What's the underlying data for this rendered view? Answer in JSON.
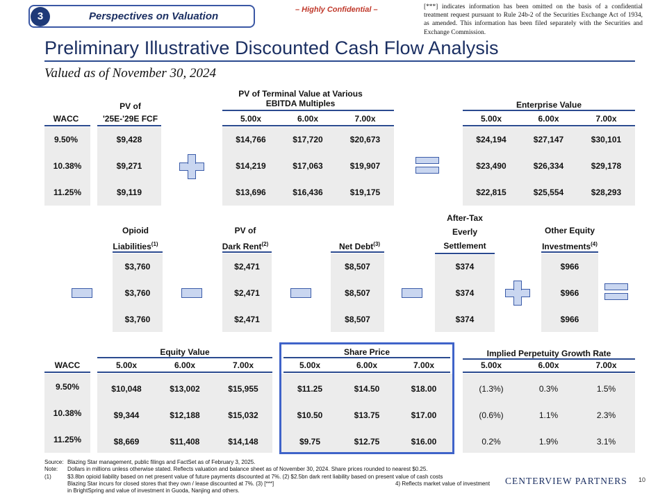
{
  "header": {
    "section_number": "3",
    "section_title": "Perspectives on Valuation",
    "confidential": "– Highly Confidential –",
    "disclaimer": "[***] indicates information has been omitted on the basis of a confidential treatment request pursuant to Rule 24b-2 of the Securities Exchange Act of 1934, as amended. This information has been filed separately with the Securities and Exchange Commission.",
    "title": "Preliminary Illustrative Discounted Cash Flow Analysis",
    "subtitle": "Valued as of November 30, 2024"
  },
  "top": {
    "wacc_header": "WACC",
    "pv_fcf_header_1": "PV of",
    "pv_fcf_header_2": "'25E-'29E FCF",
    "tv_header_1": "PV of Terminal Value at Various",
    "tv_header_2": "EBITDA Multiples",
    "ev_header": "Enterprise Value",
    "multiples": [
      "5.00x",
      "6.00x",
      "7.00x"
    ],
    "rows": [
      {
        "wacc": "9.50%",
        "fcf": "$9,428",
        "tv": [
          "$14,766",
          "$17,720",
          "$20,673"
        ],
        "ev": [
          "$24,194",
          "$27,147",
          "$30,101"
        ]
      },
      {
        "wacc": "10.38%",
        "fcf": "$9,271",
        "tv": [
          "$14,219",
          "$17,063",
          "$19,907"
        ],
        "ev": [
          "$23,490",
          "$26,334",
          "$29,178"
        ]
      },
      {
        "wacc": "11.25%",
        "fcf": "$9,119",
        "tv": [
          "$13,696",
          "$16,436",
          "$19,175"
        ],
        "ev": [
          "$22,815",
          "$25,554",
          "$28,293"
        ]
      }
    ]
  },
  "bridge": {
    "opioid": {
      "l1": "Opioid",
      "l2": "Liabilities",
      "sup": "(1)",
      "values": [
        "$3,760",
        "$3,760",
        "$3,760"
      ]
    },
    "dark_rent": {
      "l1": "PV of",
      "l2": "Dark Rent",
      "sup": "(2)",
      "values": [
        "$2,471",
        "$2,471",
        "$2,471"
      ]
    },
    "net_debt": {
      "l2": "Net Debt",
      "sup": "(3)",
      "values": [
        "$8,507",
        "$8,507",
        "$8,507"
      ]
    },
    "settlement": {
      "l0": "After-Tax",
      "l1": "Everly",
      "l2": "Settlement",
      "values": [
        "$374",
        "$374",
        "$374"
      ]
    },
    "other_equity": {
      "l1": "Other Equity",
      "l2": "Investments",
      "sup": "(4)",
      "values": [
        "$966",
        "$966",
        "$966"
      ]
    }
  },
  "bottom": {
    "wacc_header": "WACC",
    "equity_header": "Equity Value",
    "share_header": "Share Price",
    "growth_header": "Implied Perpetuity Growth Rate",
    "multiples": [
      "5.00x",
      "6.00x",
      "7.00x"
    ],
    "rows": [
      {
        "wacc": "9.50%",
        "equity": [
          "$10,048",
          "$13,002",
          "$15,955"
        ],
        "share": [
          "$11.25",
          "$14.50",
          "$18.00"
        ],
        "growth": [
          "(1.3%)",
          "0.3%",
          "1.5%"
        ]
      },
      {
        "wacc": "10.38%",
        "equity": [
          "$9,344",
          "$12,188",
          "$15,032"
        ],
        "share": [
          "$10.50",
          "$13.75",
          "$17.00"
        ],
        "growth": [
          "(0.6%)",
          "1.1%",
          "2.3%"
        ]
      },
      {
        "wacc": "11.25%",
        "equity": [
          "$8,669",
          "$11,408",
          "$14,148"
        ],
        "share": [
          "$9.75",
          "$12.75",
          "$16.00"
        ],
        "growth": [
          "0.2%",
          "1.9%",
          "3.1%"
        ]
      }
    ]
  },
  "footnotes": {
    "source_k": "Source:",
    "source": "Blazing Star management, public filings and FactSet as of February 3, 2025.",
    "note_k": "Note:",
    "note": "Dollars in millions unless otherwise stated. Reflects valuation and balance sheet as of November 30, 2024. Share prices rounded to nearest $0.25.",
    "n1_k": "(1)",
    "n1_a": "$3.8bn opioid liability based on net present value of future payments discounted at 7%. (2) $2.5bn dark rent liability based on present value of cash costs",
    "n1_b": "Blazing Star incurs for closed stores that they own / lease discounted at 7%. (3) [***]",
    "n1_c": "4) Reflects market value of investment",
    "n1_d": "in BrightSpring and value of investment in Guoda, Nanjing and others."
  },
  "brand": "CENTERVIEW PARTNERS",
  "page_number": "10"
}
